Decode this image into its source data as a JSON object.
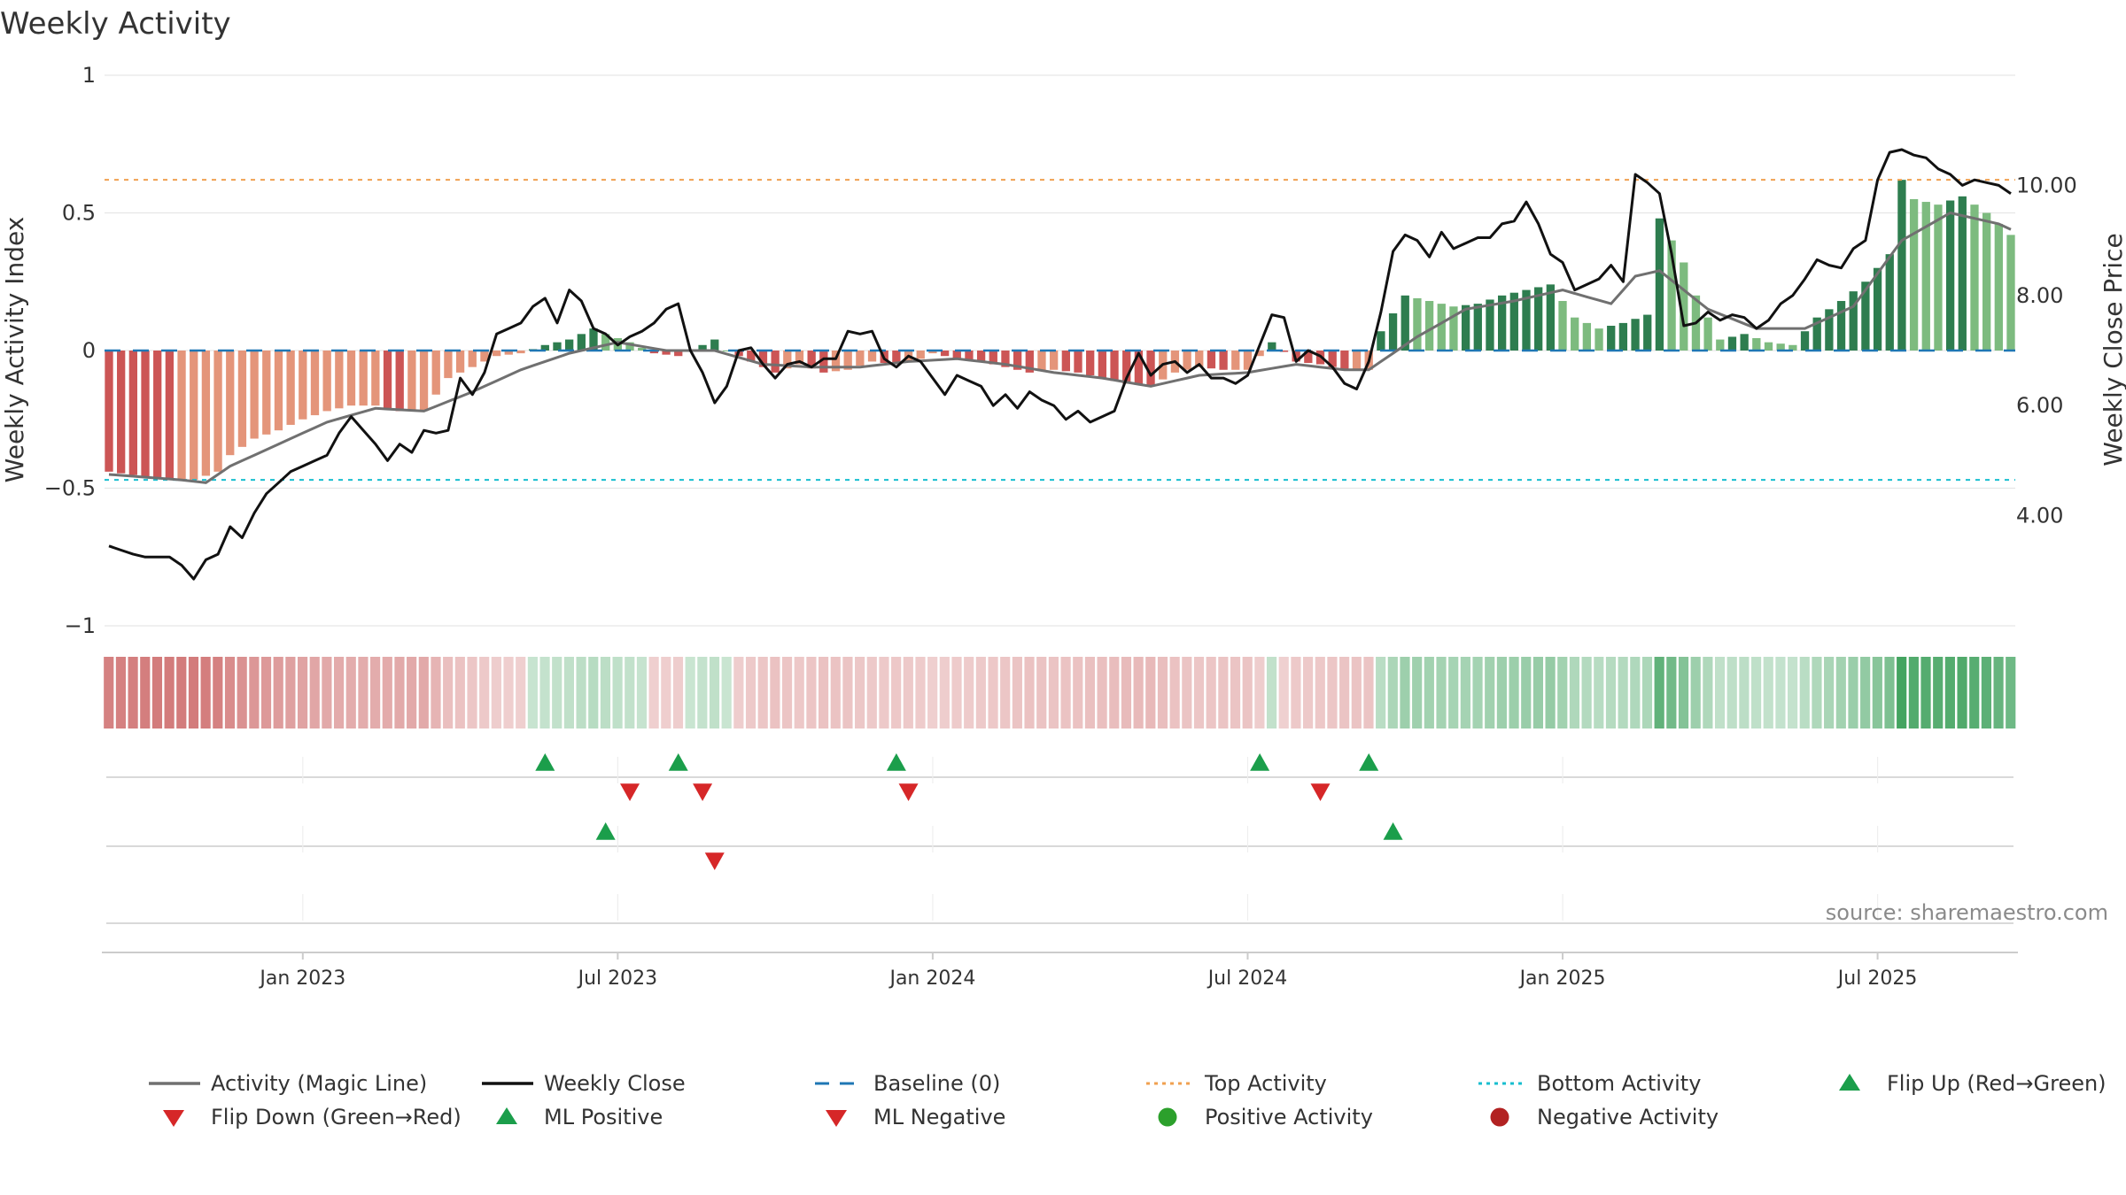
{
  "chart_data": {
    "type": "bar",
    "title": "Weekly Activity",
    "ylabel": "Weekly Activity Index",
    "y2label": "Weekly Close Price",
    "ylim": [
      -1,
      1
    ],
    "y2lim": [
      2.0,
      12.0
    ],
    "yticks": [
      {
        "v": 1,
        "label": "1"
      },
      {
        "v": 0.5,
        "label": "0.5"
      },
      {
        "v": 0,
        "label": "0"
      },
      {
        "v": -0.5,
        "label": "−0.5"
      },
      {
        "v": -1,
        "label": "−1"
      }
    ],
    "y2ticks": [
      {
        "v": 10.0,
        "label": "10.00"
      },
      {
        "v": 8.0,
        "label": "8.00"
      },
      {
        "v": 6.0,
        "label": "6.00"
      },
      {
        "v": 4.0,
        "label": "4.00"
      }
    ],
    "xticks": [
      {
        "week": 16,
        "label": "Jan 2023"
      },
      {
        "week": 42,
        "label": "Jul 2023"
      },
      {
        "week": 68,
        "label": "Jan 2024"
      },
      {
        "week": 94,
        "label": "Jul 2024"
      },
      {
        "week": 120,
        "label": "Jan 2025"
      },
      {
        "week": 146,
        "label": "Jul 2025"
      }
    ],
    "week_count": 158,
    "top_activity": 0.62,
    "bottom_activity": -0.47,
    "baseline": 0,
    "source_text": "source: sharemaestro.com",
    "activity_keyframes": [
      [
        0,
        -0.44
      ],
      [
        5,
        -0.47
      ],
      [
        7,
        -0.47
      ],
      [
        9,
        -0.44
      ],
      [
        10,
        -0.38
      ],
      [
        12,
        -0.32
      ],
      [
        14,
        -0.29
      ],
      [
        16,
        -0.25
      ],
      [
        18,
        -0.22
      ],
      [
        20,
        -0.2
      ],
      [
        22,
        -0.2
      ],
      [
        24,
        -0.22
      ],
      [
        26,
        -0.22
      ],
      [
        28,
        -0.1
      ],
      [
        30,
        -0.06
      ],
      [
        32,
        -0.02
      ],
      [
        34,
        -0.01
      ],
      [
        36,
        0.02
      ],
      [
        38,
        0.04
      ],
      [
        40,
        0.08
      ],
      [
        41,
        0.06
      ],
      [
        43,
        0.03
      ],
      [
        45,
        -0.01
      ],
      [
        47,
        -0.02
      ],
      [
        49,
        0.02
      ],
      [
        50,
        0.04
      ],
      [
        51,
        0.0
      ],
      [
        53,
        -0.04
      ],
      [
        55,
        -0.08
      ],
      [
        57,
        -0.05
      ],
      [
        59,
        -0.08
      ],
      [
        61,
        -0.07
      ],
      [
        63,
        -0.04
      ],
      [
        65,
        -0.05
      ],
      [
        67,
        -0.03
      ],
      [
        68,
        -0.01
      ],
      [
        70,
        -0.03
      ],
      [
        72,
        -0.04
      ],
      [
        74,
        -0.06
      ],
      [
        76,
        -0.08
      ],
      [
        78,
        -0.07
      ],
      [
        80,
        -0.08
      ],
      [
        82,
        -0.1
      ],
      [
        84,
        -0.12
      ],
      [
        86,
        -0.13
      ],
      [
        88,
        -0.08
      ],
      [
        90,
        -0.06
      ],
      [
        92,
        -0.07
      ],
      [
        94,
        -0.07
      ],
      [
        96,
        0.03
      ],
      [
        98,
        -0.04
      ],
      [
        100,
        -0.05
      ],
      [
        102,
        -0.07
      ],
      [
        104,
        -0.07
      ],
      [
        105,
        0.07
      ],
      [
        107,
        0.2
      ],
      [
        109,
        0.18
      ],
      [
        111,
        0.16
      ],
      [
        113,
        0.17
      ],
      [
        115,
        0.2
      ],
      [
        117,
        0.22
      ],
      [
        119,
        0.24
      ],
      [
        121,
        0.12
      ],
      [
        123,
        0.08
      ],
      [
        125,
        0.1
      ],
      [
        127,
        0.13
      ],
      [
        128,
        0.48
      ],
      [
        130,
        0.32
      ],
      [
        131,
        0.2
      ],
      [
        133,
        0.04
      ],
      [
        135,
        0.06
      ],
      [
        137,
        0.03
      ],
      [
        139,
        0.02
      ],
      [
        141,
        0.12
      ],
      [
        143,
        0.18
      ],
      [
        145,
        0.25
      ],
      [
        147,
        0.35
      ],
      [
        148,
        0.62
      ],
      [
        149,
        0.55
      ],
      [
        151,
        0.53
      ],
      [
        153,
        0.56
      ],
      [
        155,
        0.5
      ],
      [
        157,
        0.42
      ]
    ],
    "magic_keyframes": [
      [
        0,
        -0.45
      ],
      [
        6,
        -0.47
      ],
      [
        8,
        -0.48
      ],
      [
        10,
        -0.42
      ],
      [
        14,
        -0.34
      ],
      [
        18,
        -0.26
      ],
      [
        22,
        -0.21
      ],
      [
        26,
        -0.22
      ],
      [
        30,
        -0.15
      ],
      [
        34,
        -0.07
      ],
      [
        38,
        -0.01
      ],
      [
        42,
        0.03
      ],
      [
        46,
        0.0
      ],
      [
        50,
        0.0
      ],
      [
        54,
        -0.05
      ],
      [
        58,
        -0.06
      ],
      [
        62,
        -0.06
      ],
      [
        66,
        -0.04
      ],
      [
        70,
        -0.03
      ],
      [
        74,
        -0.05
      ],
      [
        78,
        -0.08
      ],
      [
        82,
        -0.1
      ],
      [
        86,
        -0.13
      ],
      [
        90,
        -0.09
      ],
      [
        94,
        -0.08
      ],
      [
        98,
        -0.05
      ],
      [
        102,
        -0.07
      ],
      [
        104,
        -0.07
      ],
      [
        108,
        0.05
      ],
      [
        112,
        0.15
      ],
      [
        116,
        0.18
      ],
      [
        120,
        0.22
      ],
      [
        124,
        0.17
      ],
      [
        126,
        0.27
      ],
      [
        128,
        0.29
      ],
      [
        132,
        0.15
      ],
      [
        136,
        0.08
      ],
      [
        140,
        0.08
      ],
      [
        144,
        0.16
      ],
      [
        148,
        0.4
      ],
      [
        152,
        0.5
      ],
      [
        156,
        0.46
      ],
      [
        157,
        0.44
      ]
    ],
    "close_keyframes": [
      [
        0,
        3.45
      ],
      [
        2,
        3.3
      ],
      [
        3,
        3.25
      ],
      [
        5,
        3.25
      ],
      [
        6,
        3.1
      ],
      [
        7,
        2.85
      ],
      [
        8,
        3.2
      ],
      [
        9,
        3.3
      ],
      [
        10,
        3.8
      ],
      [
        11,
        3.6
      ],
      [
        12,
        4.05
      ],
      [
        13,
        4.4
      ],
      [
        14,
        4.6
      ],
      [
        15,
        4.8
      ],
      [
        16,
        4.9
      ],
      [
        17,
        5.0
      ],
      [
        18,
        5.1
      ],
      [
        19,
        5.5
      ],
      [
        20,
        5.8
      ],
      [
        21,
        5.55
      ],
      [
        22,
        5.3
      ],
      [
        23,
        5.0
      ],
      [
        24,
        5.3
      ],
      [
        25,
        5.15
      ],
      [
        26,
        5.55
      ],
      [
        27,
        5.5
      ],
      [
        28,
        5.55
      ],
      [
        29,
        6.5
      ],
      [
        30,
        6.2
      ],
      [
        31,
        6.6
      ],
      [
        32,
        7.3
      ],
      [
        34,
        7.5
      ],
      [
        35,
        7.8
      ],
      [
        36,
        7.95
      ],
      [
        37,
        7.5
      ],
      [
        38,
        8.1
      ],
      [
        39,
        7.9
      ],
      [
        40,
        7.4
      ],
      [
        41,
        7.3
      ],
      [
        42,
        7.1
      ],
      [
        43,
        7.25
      ],
      [
        44,
        7.35
      ],
      [
        45,
        7.5
      ],
      [
        46,
        7.75
      ],
      [
        47,
        7.85
      ],
      [
        48,
        7.0
      ],
      [
        49,
        6.6
      ],
      [
        50,
        6.05
      ],
      [
        51,
        6.35
      ],
      [
        52,
        7.0
      ],
      [
        53,
        7.05
      ],
      [
        54,
        6.75
      ],
      [
        55,
        6.5
      ],
      [
        56,
        6.75
      ],
      [
        57,
        6.8
      ],
      [
        58,
        6.7
      ],
      [
        59,
        6.85
      ],
      [
        60,
        6.85
      ],
      [
        61,
        7.35
      ],
      [
        62,
        7.3
      ],
      [
        63,
        7.35
      ],
      [
        64,
        6.85
      ],
      [
        65,
        6.7
      ],
      [
        66,
        6.9
      ],
      [
        67,
        6.8
      ],
      [
        68,
        6.5
      ],
      [
        69,
        6.2
      ],
      [
        70,
        6.55
      ],
      [
        71,
        6.45
      ],
      [
        72,
        6.35
      ],
      [
        73,
        6.0
      ],
      [
        74,
        6.2
      ],
      [
        75,
        5.95
      ],
      [
        76,
        6.25
      ],
      [
        77,
        6.1
      ],
      [
        78,
        6.0
      ],
      [
        79,
        5.75
      ],
      [
        80,
        5.9
      ],
      [
        81,
        5.7
      ],
      [
        82,
        5.8
      ],
      [
        83,
        5.9
      ],
      [
        84,
        6.5
      ],
      [
        85,
        6.95
      ],
      [
        86,
        6.55
      ],
      [
        87,
        6.75
      ],
      [
        88,
        6.8
      ],
      [
        89,
        6.6
      ],
      [
        90,
        6.75
      ],
      [
        91,
        6.5
      ],
      [
        92,
        6.5
      ],
      [
        93,
        6.4
      ],
      [
        94,
        6.55
      ],
      [
        95,
        7.1
      ],
      [
        96,
        7.65
      ],
      [
        97,
        7.6
      ],
      [
        98,
        6.8
      ],
      [
        99,
        7.0
      ],
      [
        100,
        6.9
      ],
      [
        101,
        6.7
      ],
      [
        102,
        6.4
      ],
      [
        103,
        6.3
      ],
      [
        104,
        6.8
      ],
      [
        105,
        7.7
      ],
      [
        106,
        8.8
      ],
      [
        107,
        9.1
      ],
      [
        108,
        9.0
      ],
      [
        109,
        8.7
      ],
      [
        110,
        9.15
      ],
      [
        111,
        8.85
      ],
      [
        112,
        8.95
      ],
      [
        113,
        9.05
      ],
      [
        114,
        9.05
      ],
      [
        115,
        9.3
      ],
      [
        116,
        9.35
      ],
      [
        117,
        9.7
      ],
      [
        118,
        9.3
      ],
      [
        119,
        8.75
      ],
      [
        120,
        8.6
      ],
      [
        121,
        8.1
      ],
      [
        122,
        8.2
      ],
      [
        123,
        8.3
      ],
      [
        124,
        8.55
      ],
      [
        125,
        8.25
      ],
      [
        126,
        10.2
      ],
      [
        127,
        10.05
      ],
      [
        128,
        9.85
      ],
      [
        129,
        8.75
      ],
      [
        130,
        7.45
      ],
      [
        131,
        7.5
      ],
      [
        132,
        7.7
      ],
      [
        133,
        7.55
      ],
      [
        134,
        7.65
      ],
      [
        135,
        7.6
      ],
      [
        136,
        7.4
      ],
      [
        137,
        7.55
      ],
      [
        138,
        7.85
      ],
      [
        139,
        8.0
      ],
      [
        140,
        8.3
      ],
      [
        141,
        8.65
      ],
      [
        142,
        8.55
      ],
      [
        143,
        8.5
      ],
      [
        144,
        8.85
      ],
      [
        145,
        9.0
      ],
      [
        146,
        10.1
      ],
      [
        147,
        10.6
      ],
      [
        148,
        10.65
      ],
      [
        149,
        10.55
      ],
      [
        150,
        10.5
      ],
      [
        151,
        10.3
      ],
      [
        152,
        10.2
      ],
      [
        153,
        10.0
      ],
      [
        154,
        10.1
      ],
      [
        155,
        10.05
      ],
      [
        156,
        10.0
      ],
      [
        157,
        9.85
      ]
    ],
    "flip_up_row1": [
      36,
      47,
      65,
      95,
      104
    ],
    "flip_down_row1": [
      43,
      49,
      66,
      100
    ],
    "ml_positive_row2": [
      41,
      106
    ],
    "ml_negative_row2": [
      50
    ]
  },
  "legend": [
    {
      "kind": "line",
      "color": "#707070",
      "label": "Activity (Magic Line)"
    },
    {
      "kind": "line",
      "color": "#111111",
      "label": "Weekly Close"
    },
    {
      "kind": "dash",
      "color": "#1f77b4",
      "label": "Baseline (0)"
    },
    {
      "kind": "dot",
      "color": "#f0a050",
      "label": "Top Activity"
    },
    {
      "kind": "dot",
      "color": "#17becf",
      "label": "Bottom Activity"
    },
    {
      "kind": "tri-up",
      "color": "#1b9e4b",
      "label": "Flip Up (Red→Green)"
    },
    {
      "kind": "tri-down",
      "color": "#d62728",
      "label": "Flip Down (Green→Red)"
    },
    {
      "kind": "tri-up",
      "color": "#1b9e4b",
      "label": "ML Positive"
    },
    {
      "kind": "tri-down",
      "color": "#d62728",
      "label": "ML Negative"
    },
    {
      "kind": "circle",
      "color": "#2ca02c",
      "label": "Positive Activity"
    },
    {
      "kind": "circle",
      "color": "#b22222",
      "label": "Negative Activity"
    }
  ]
}
